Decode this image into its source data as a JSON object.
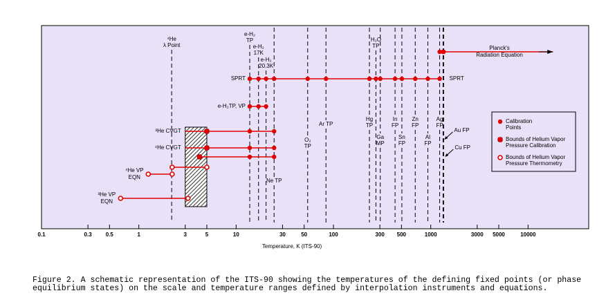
{
  "chart_data": {
    "type": "range",
    "x_label": "Temperature, K (ITS-90)",
    "xlim": [
      0.1,
      42000
    ],
    "log_x": true,
    "xticks": [
      0.1,
      0.3,
      0.5,
      1,
      3,
      5,
      10,
      30,
      50,
      100,
      300,
      500,
      1000,
      3000,
      5000,
      10000
    ],
    "color": "#e00000",
    "background": "#e8e1f7",
    "fixed_points": [
      {
        "value": 2.1768,
        "label": [
          "⁴He",
          "λ Point"
        ]
      },
      {
        "value": 13.8033,
        "label": [
          "e-H₂",
          "TP"
        ]
      },
      {
        "value": 17,
        "label": [
          "e-H₂",
          "17K"
        ]
      },
      {
        "value": 20.3,
        "label": [
          "e-H₂",
          "20.3K"
        ]
      },
      {
        "value": 24.5561,
        "label": [
          "Ne TP"
        ]
      },
      {
        "value": 54.3584,
        "label": [
          "O₂",
          "TP"
        ]
      },
      {
        "value": 83.8058,
        "label": [
          "Ar TP"
        ]
      },
      {
        "value": 234.3156,
        "label": [
          "Hg",
          "TP"
        ]
      },
      {
        "value": 273.16,
        "label": [
          "H₂O",
          "TP"
        ]
      },
      {
        "value": 302.9146,
        "label": [
          "Ga",
          "MP"
        ]
      },
      {
        "value": 429.7485,
        "label": [
          "In",
          "FP"
        ]
      },
      {
        "value": 505.078,
        "label": [
          "Sn",
          "FP"
        ]
      },
      {
        "value": 692.677,
        "label": [
          "Zn",
          "FP"
        ]
      },
      {
        "value": 933.473,
        "label": [
          "Al",
          "FP"
        ]
      },
      {
        "value": 1234.93,
        "label": [
          "Ag",
          "FP"
        ]
      },
      {
        "value": 1337.33,
        "label": [
          "Au FP"
        ]
      },
      {
        "value": 1357.77,
        "label": [
          "Cu FP"
        ]
      }
    ],
    "rows": [
      {
        "label": [
          "Planck's",
          "Radiation Equation"
        ],
        "range": [
          1234.93,
          18000
        ],
        "arrow": true,
        "points": [
          1234.93,
          1337.33,
          1357.77
        ],
        "point_types": [
          "calibration",
          "calibration",
          "calibration"
        ]
      },
      {
        "label": [
          "SPRT"
        ],
        "range": [
          13.8033,
          1234.93
        ],
        "label_right": true,
        "points": [
          13.8033,
          17,
          20.3,
          24.5561,
          54.3584,
          83.8058,
          234.3156,
          273.16,
          302.9146,
          429.7485,
          505.078,
          692.677,
          933.473,
          1234.93
        ],
        "point_types": [
          "calibration",
          "calibration",
          "calibration",
          "calibration",
          "calibration",
          "calibration",
          "calibration",
          "calibration",
          "calibration",
          "calibration",
          "calibration",
          "calibration",
          "calibration",
          "calibration"
        ]
      },
      {
        "label": [
          "e-H₂TP, VP"
        ],
        "range": [
          13.8033,
          20.3
        ],
        "points": [
          13.8033,
          17,
          20.3
        ],
        "point_types": [
          "calibration",
          "calibration",
          "calibration"
        ]
      },
      {
        "label": [
          "³He CVGT"
        ],
        "range": [
          3,
          24.5561
        ],
        "points": [
          5,
          13.8033,
          24.5561
        ],
        "point_types": [
          "bound",
          "calibration",
          "calibration"
        ]
      },
      {
        "label": [
          "⁴He CVGT"
        ],
        "range": [
          3,
          24.5561
        ],
        "points": [
          5,
          13.8033,
          24.5561
        ],
        "point_types": [
          "bound",
          "calibration",
          "calibration"
        ]
      },
      {
        "range": [
          4.2,
          24.5561
        ],
        "points": [
          4.2,
          13.8033,
          24.5561
        ],
        "point_types": [
          "bound",
          "calibration",
          "calibration"
        ]
      },
      {
        "range": [
          2.2,
          5
        ],
        "points": [
          2.2,
          5
        ],
        "point_types": [
          "open",
          "open"
        ]
      },
      {
        "label": [
          "⁴He VP",
          "EQN"
        ],
        "range": [
          1.25,
          2.2
        ],
        "points": [
          1.25,
          2.2
        ],
        "point_types": [
          "open",
          "open"
        ]
      },
      {
        "label": [
          "³He VP",
          "EQN"
        ],
        "range": [
          0.65,
          3.2
        ],
        "points": [
          0.65,
          3.2
        ],
        "point_types": [
          "open",
          "open"
        ]
      }
    ],
    "hatch_range": [
      3,
      5
    ],
    "legend": [
      {
        "marker": "calibration",
        "label": [
          "Calibration",
          "Points"
        ]
      },
      {
        "marker": "bound",
        "label": [
          "Bounds of Helium Vapor",
          "Pressure Calibration"
        ]
      },
      {
        "marker": "open",
        "label": [
          "Bounds of Helium Vapor",
          "Pressure Thermometry"
        ]
      }
    ]
  },
  "caption": [
    "Figure 2. A schematic representation of the ITS-90 showing the temperatures of the defining fixed points (or phase",
    "equilibrium states) on the scale and temperature ranges defined by interpolation instruments and equations."
  ]
}
